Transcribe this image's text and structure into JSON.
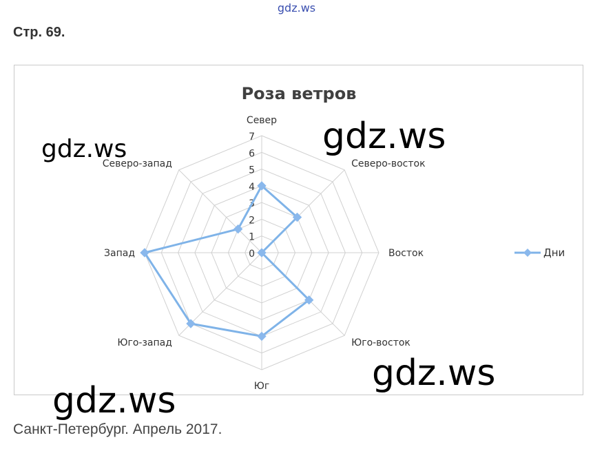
{
  "site_top": "gdz.ws",
  "page_heading": "Стр. 69.",
  "caption": "Санкт-Петербург. Апрель 2017.",
  "watermarks": [
    "gdz.ws",
    "gdz.ws",
    "gdz.ws",
    "gdz.ws"
  ],
  "colors": {
    "series": "#7fb3e8",
    "marker": "#8ab8ec",
    "grid": "#d0d0d0",
    "title": "#404040"
  },
  "chart_data": {
    "type": "radar",
    "title": "Роза ветров",
    "categories": [
      "Север",
      "Северо-восток",
      "Восток",
      "Юго-восток",
      "Юг",
      "Юго-запад",
      "Запад",
      "Северо-запад"
    ],
    "ticks": [
      "0",
      "1",
      "2",
      "3",
      "4",
      "5",
      "6",
      "7"
    ],
    "range": [
      0,
      7
    ],
    "legend_position": "right",
    "series": [
      {
        "name": "Дни",
        "values": [
          4,
          3,
          0,
          4,
          5,
          6,
          7,
          2
        ]
      }
    ]
  }
}
